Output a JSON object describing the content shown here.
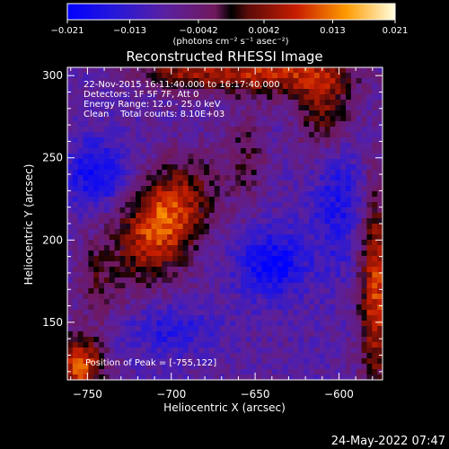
{
  "chart_data": {
    "type": "heatmap",
    "title": "Reconstructed RHESSI Image",
    "colorbar": {
      "min": -0.021,
      "max": 0.021,
      "tick_labels": [
        "-0.021",
        "-0.013",
        "-0.0042",
        "0.0042",
        "0.013",
        "0.021"
      ],
      "tick_values": [
        -0.021,
        -0.013,
        -0.0042,
        0.0042,
        0.013,
        0.021
      ],
      "units_label": "(photons cm⁻² s⁻¹ asec⁻²)"
    },
    "xlabel": "Heliocentric X (arcsec)",
    "ylabel": "Heliocentric Y (arcsec)",
    "xlim": [
      -762,
      -574
    ],
    "ylim": [
      115,
      305
    ],
    "x_ticks": [
      -750,
      -700,
      -650,
      -600
    ],
    "y_ticks": [
      150,
      200,
      250,
      300
    ],
    "annotations": [
      "22-Nov-2015 16:11:40.000 to 16:17:40.000",
      "Detectors: 1F 5F 7F, Att 0",
      "Energy Range: 12.0 - 25.0 keV",
      "Clean    Total counts: 8.10E+03"
    ],
    "peak_label": "Position of Peak = [-755,122]",
    "peak": [
      -755,
      122
    ],
    "sources": [
      {
        "x": -705,
        "y": 211,
        "amp": 0.021,
        "sx": 16,
        "sy": 26,
        "rot": 0.55
      },
      {
        "x": -755,
        "y": 124,
        "amp": 0.02,
        "sx": 10,
        "sy": 12,
        "rot": 0
      },
      {
        "x": -578,
        "y": 170,
        "amp": 0.018,
        "sx": 7,
        "sy": 45,
        "rot": 0
      },
      {
        "x": -640,
        "y": 302,
        "amp": 0.016,
        "sx": 28,
        "sy": 10,
        "rot": 0
      },
      {
        "x": -695,
        "y": 302,
        "amp": 0.011,
        "sx": 20,
        "sy": 8,
        "rot": 0
      },
      {
        "x": -608,
        "y": 280,
        "amp": 0.012,
        "sx": 12,
        "sy": 22,
        "rot": 0
      },
      {
        "x": -655,
        "y": 250,
        "amp": 0.007,
        "sx": 8,
        "sy": 20,
        "rot": 0
      },
      {
        "x": -745,
        "y": 175,
        "amp": 0.006,
        "sx": 8,
        "sy": 20,
        "rot": 0
      },
      {
        "x": -745,
        "y": 240,
        "amp": -0.011,
        "sx": 12,
        "sy": 14,
        "rot": 0
      },
      {
        "x": -640,
        "y": 185,
        "amp": -0.012,
        "sx": 14,
        "sy": 14,
        "rot": 0
      },
      {
        "x": -600,
        "y": 225,
        "amp": -0.008,
        "sx": 12,
        "sy": 30,
        "rot": 0
      },
      {
        "x": -700,
        "y": 145,
        "amp": -0.007,
        "sx": 18,
        "sy": 10,
        "rot": 0
      }
    ]
  },
  "timestamp": "24-May-2022 07:47"
}
